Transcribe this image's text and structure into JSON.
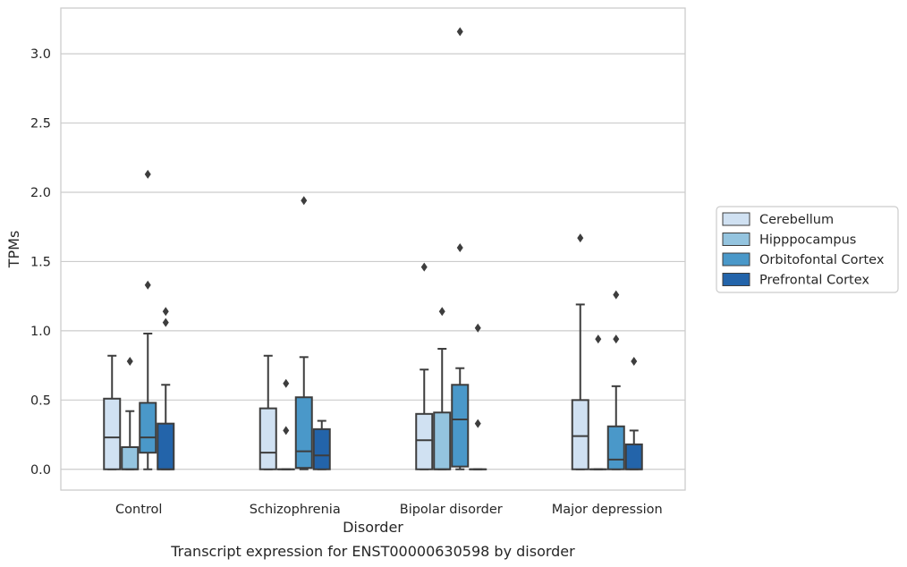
{
  "caption": "Transcript expression for ENST00000630598 by disorder",
  "chart_data": {
    "type": "box",
    "xlabel": "Disorder",
    "ylabel": "TPMs",
    "categories": [
      "Control",
      "Schizophrenia",
      "Bipolar disorder",
      "Major depression"
    ],
    "ylim": [
      -0.15,
      3.33
    ],
    "yticks": [
      0.0,
      0.5,
      1.0,
      1.5,
      2.0,
      2.5,
      3.0
    ],
    "ytick_labels": [
      "0.0",
      "0.5",
      "1.0",
      "1.5",
      "2.0",
      "2.5",
      "3.0"
    ],
    "grid": "horizontal",
    "legend_position": "right",
    "series": [
      {
        "name": "Cerebellum",
        "color": "#d0e1f2",
        "boxes": [
          {
            "whisker_low": 0.0,
            "q1": 0.0,
            "median": 0.23,
            "q3": 0.51,
            "whisker_high": 0.82,
            "outliers": []
          },
          {
            "whisker_low": 0.0,
            "q1": 0.0,
            "median": 0.12,
            "q3": 0.44,
            "whisker_high": 0.82,
            "outliers": []
          },
          {
            "whisker_low": 0.0,
            "q1": 0.0,
            "median": 0.21,
            "q3": 0.4,
            "whisker_high": 0.72,
            "outliers": [
              1.46
            ]
          },
          {
            "whisker_low": 0.0,
            "q1": 0.0,
            "median": 0.24,
            "q3": 0.5,
            "whisker_high": 1.19,
            "outliers": [
              1.67
            ]
          }
        ]
      },
      {
        "name": "Hipppocampus",
        "color": "#94c4df",
        "boxes": [
          {
            "whisker_low": 0.0,
            "q1": 0.0,
            "median": 0.0,
            "q3": 0.16,
            "whisker_high": 0.42,
            "outliers": [
              0.78
            ]
          },
          {
            "whisker_low": 0.0,
            "q1": 0.0,
            "median": 0.0,
            "q3": 0.0,
            "whisker_high": 0.0,
            "outliers": [
              0.28,
              0.62
            ]
          },
          {
            "whisker_low": 0.0,
            "q1": 0.0,
            "median": 0.0,
            "q3": 0.41,
            "whisker_high": 0.87,
            "outliers": [
              1.14
            ]
          },
          {
            "whisker_low": 0.0,
            "q1": 0.0,
            "median": 0.0,
            "q3": 0.0,
            "whisker_high": 0.0,
            "outliers": [
              0.94
            ]
          }
        ]
      },
      {
        "name": "Orbitofontal Cortex",
        "color": "#4a98c9",
        "boxes": [
          {
            "whisker_low": 0.0,
            "q1": 0.12,
            "median": 0.23,
            "q3": 0.48,
            "whisker_high": 0.98,
            "outliers": [
              1.33,
              2.13
            ]
          },
          {
            "whisker_low": 0.0,
            "q1": 0.01,
            "median": 0.13,
            "q3": 0.52,
            "whisker_high": 0.81,
            "outliers": [
              1.94
            ]
          },
          {
            "whisker_low": 0.0,
            "q1": 0.02,
            "median": 0.36,
            "q3": 0.61,
            "whisker_high": 0.73,
            "outliers": [
              1.6,
              3.16
            ]
          },
          {
            "whisker_low": 0.0,
            "q1": 0.0,
            "median": 0.07,
            "q3": 0.31,
            "whisker_high": 0.6,
            "outliers": [
              0.94,
              1.26
            ]
          }
        ]
      },
      {
        "name": "Prefrontal Cortex",
        "color": "#2364aa",
        "boxes": [
          {
            "whisker_low": 0.0,
            "q1": 0.0,
            "median": 0.0,
            "q3": 0.33,
            "whisker_high": 0.61,
            "outliers": [
              1.06,
              1.14
            ]
          },
          {
            "whisker_low": 0.0,
            "q1": 0.0,
            "median": 0.1,
            "q3": 0.29,
            "whisker_high": 0.35,
            "outliers": []
          },
          {
            "whisker_low": 0.0,
            "q1": 0.0,
            "median": 0.0,
            "q3": 0.0,
            "whisker_high": 0.0,
            "outliers": [
              0.33,
              1.02
            ]
          },
          {
            "whisker_low": 0.0,
            "q1": 0.0,
            "median": 0.0,
            "q3": 0.18,
            "whisker_high": 0.28,
            "outliers": [
              0.78
            ]
          }
        ]
      }
    ]
  }
}
